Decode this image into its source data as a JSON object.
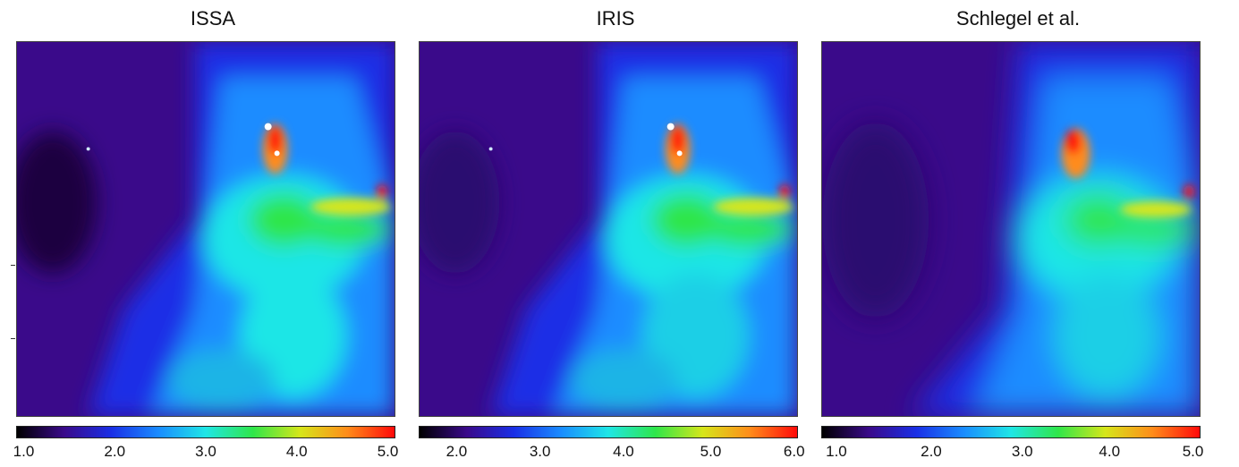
{
  "panels": [
    {
      "title": "ISSA",
      "colorbar": {
        "ticks": [
          "1.0",
          "2.0",
          "3.0",
          "4.0",
          "5.0"
        ],
        "tick_values": [
          1.0,
          2.0,
          3.0,
          4.0,
          5.0
        ],
        "range": [
          1.0,
          5.0
        ]
      }
    },
    {
      "title": "IRIS",
      "colorbar": {
        "ticks": [
          "2.0",
          "3.0",
          "4.0",
          "5.0",
          "6.0"
        ],
        "tick_values": [
          2.0,
          3.0,
          4.0,
          5.0,
          6.0
        ],
        "range": [
          1.5,
          6.0
        ]
      }
    },
    {
      "title": "Schlegel et al.",
      "colorbar": {
        "ticks": [
          "1.0",
          "2.0",
          "3.0",
          "4.0",
          "5.0"
        ],
        "tick_values": [
          1.0,
          2.0,
          3.0,
          4.0,
          5.0
        ],
        "range": [
          1.0,
          5.0
        ]
      }
    }
  ],
  "colormap": [
    "#000000",
    "#3a0a8a",
    "#1a2fe6",
    "#1a8cff",
    "#1fe6e6",
    "#2fe64a",
    "#d6e61a",
    "#ff8c1a",
    "#ff0a0a"
  ]
}
